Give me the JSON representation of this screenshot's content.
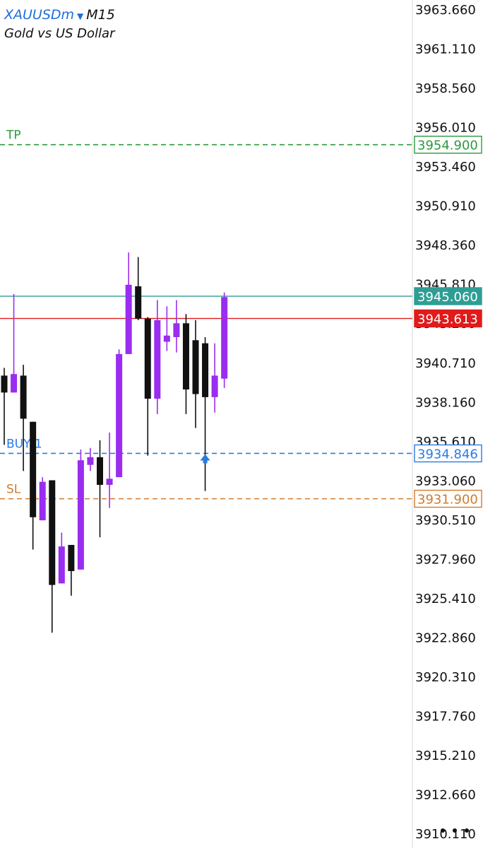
{
  "header": {
    "symbol": "XAUUSDm",
    "timeframe": "M15",
    "description": "Gold vs US Dollar",
    "caret_icon": "dropdown-caret-icon"
  },
  "colors": {
    "bull": "#9a2df0",
    "bear": "#111111",
    "tp": "#2c9a3d",
    "sl": "#d07a2d",
    "buy": "#2a7be4",
    "bid": "#2e9e94",
    "ask": "#e01b1b",
    "axis": "#d8d8d8"
  },
  "chart_data": {
    "type": "candlestick",
    "symbol": "XAUUSDm",
    "timeframe": "M15",
    "ylim": [
      3909.2,
      3964.3
    ],
    "y_ticks": [
      "3963.660",
      "3961.110",
      "3958.560",
      "3956.010",
      "3953.460",
      "3950.910",
      "3948.360",
      "3945.810",
      "3943.260",
      "3940.710",
      "3938.160",
      "3935.610",
      "3933.060",
      "3930.510",
      "3927.960",
      "3925.410",
      "3922.860",
      "3920.310",
      "3917.760",
      "3915.210",
      "3912.660",
      "3910.110"
    ],
    "candles": [
      {
        "o": 3939.9,
        "h": 3940.4,
        "l": 3935.4,
        "c": 3938.8
      },
      {
        "o": 3938.8,
        "h": 3945.2,
        "l": 3938.8,
        "c": 3940.0
      },
      {
        "o": 3939.9,
        "h": 3940.6,
        "l": 3933.7,
        "c": 3937.1
      },
      {
        "o": 3936.9,
        "h": 3936.9,
        "l": 3928.6,
        "c": 3930.7
      },
      {
        "o": 3930.5,
        "h": 3933.3,
        "l": 3930.5,
        "c": 3933.0
      },
      {
        "o": 3933.1,
        "h": 3933.1,
        "l": 3923.2,
        "c": 3926.3
      },
      {
        "o": 3926.4,
        "h": 3929.7,
        "l": 3926.4,
        "c": 3928.8
      },
      {
        "o": 3928.9,
        "h": 3928.9,
        "l": 3925.6,
        "c": 3927.2
      },
      {
        "o": 3927.3,
        "h": 3935.1,
        "l": 3927.3,
        "c": 3934.4
      },
      {
        "o": 3934.1,
        "h": 3935.2,
        "l": 3933.7,
        "c": 3934.6
      },
      {
        "o": 3934.6,
        "h": 3935.7,
        "l": 3929.4,
        "c": 3932.8
      },
      {
        "o": 3932.8,
        "h": 3936.2,
        "l": 3931.3,
        "c": 3933.2
      },
      {
        "o": 3933.3,
        "h": 3941.6,
        "l": 3933.3,
        "c": 3941.3
      },
      {
        "o": 3941.3,
        "h": 3947.9,
        "l": 3941.3,
        "c": 3945.8
      },
      {
        "o": 3945.7,
        "h": 3947.6,
        "l": 3943.5,
        "c": 3943.6
      },
      {
        "o": 3943.6,
        "h": 3943.7,
        "l": 3934.7,
        "c": 3938.4
      },
      {
        "o": 3938.4,
        "h": 3944.8,
        "l": 3937.4,
        "c": 3943.5
      },
      {
        "o": 3942.1,
        "h": 3944.4,
        "l": 3941.5,
        "c": 3942.5
      },
      {
        "o": 3942.4,
        "h": 3944.8,
        "l": 3941.4,
        "c": 3943.3
      },
      {
        "o": 3943.3,
        "h": 3943.9,
        "l": 3937.4,
        "c": 3939.0
      },
      {
        "o": 3942.2,
        "h": 3943.5,
        "l": 3936.5,
        "c": 3938.7
      },
      {
        "o": 3942.0,
        "h": 3942.4,
        "l": 3932.4,
        "c": 3938.5
      },
      {
        "o": 3938.5,
        "h": 3942.0,
        "l": 3937.5,
        "c": 3939.9
      },
      {
        "o": 3939.7,
        "h": 3945.3,
        "l": 3939.1,
        "c": 3945.0
      }
    ],
    "levels": [
      {
        "name": "TP",
        "label": "TP",
        "value": 3954.9,
        "price_label": "3954.900",
        "style": "dashed",
        "color": "#2c9a3d"
      },
      {
        "name": "BUY 1",
        "label": "BUY 1",
        "value": 3934.846,
        "price_label": "3934.846",
        "style": "dashed",
        "color": "#2a7be4"
      },
      {
        "name": "SL",
        "label": "SL",
        "value": 3931.9,
        "price_label": "3931.900",
        "style": "dashed",
        "color": "#d07a2d"
      },
      {
        "name": "bid",
        "label": "",
        "value": 3945.06,
        "price_label": "3945.060",
        "style": "solid",
        "color": "#2e9e94"
      },
      {
        "name": "ask",
        "label": "",
        "value": 3943.613,
        "price_label": "3943.613",
        "style": "solid",
        "color": "#e01b1b"
      }
    ],
    "buy_marker": {
      "candle_index": 21,
      "price": 3934.846
    },
    "grid": false
  },
  "menu": {
    "more_icon": "more-dots-icon"
  }
}
